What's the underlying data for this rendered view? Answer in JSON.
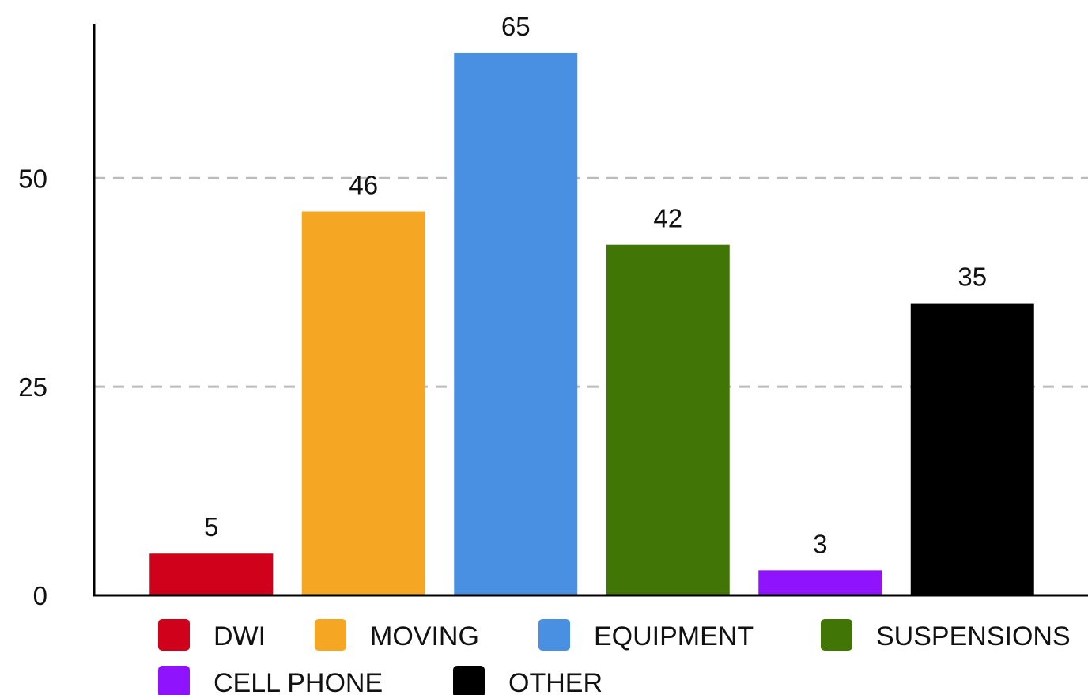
{
  "chart_data": {
    "type": "bar",
    "title": "",
    "xlabel": "",
    "ylabel": "",
    "categories": [
      "DWI",
      "MOVING",
      "EQUIPMENT",
      "SUSPENSIONS",
      "CELL PHONE",
      "OTHER"
    ],
    "values": [
      5,
      46,
      65,
      42,
      3,
      35
    ],
    "colors": [
      "#d0021b",
      "#f5a623",
      "#4a90e2",
      "#417505",
      "#9013fe",
      "#000000"
    ],
    "ylim": [
      0,
      68.5
    ],
    "yticks": [
      0,
      25,
      50
    ],
    "ytick_labels": [
      "0",
      "25",
      "50"
    ],
    "data_labels": [
      "5",
      "46",
      "65",
      "42",
      "3",
      "35"
    ],
    "grid": true,
    "grid_style": "dashed",
    "grid_color": "#bbbbbb",
    "legend": {
      "position": "bottom",
      "entries": [
        "DWI",
        "MOVING",
        "EQUIPMENT",
        "SUSPENSIONS",
        "CELL PHONE",
        "OTHER"
      ]
    }
  }
}
